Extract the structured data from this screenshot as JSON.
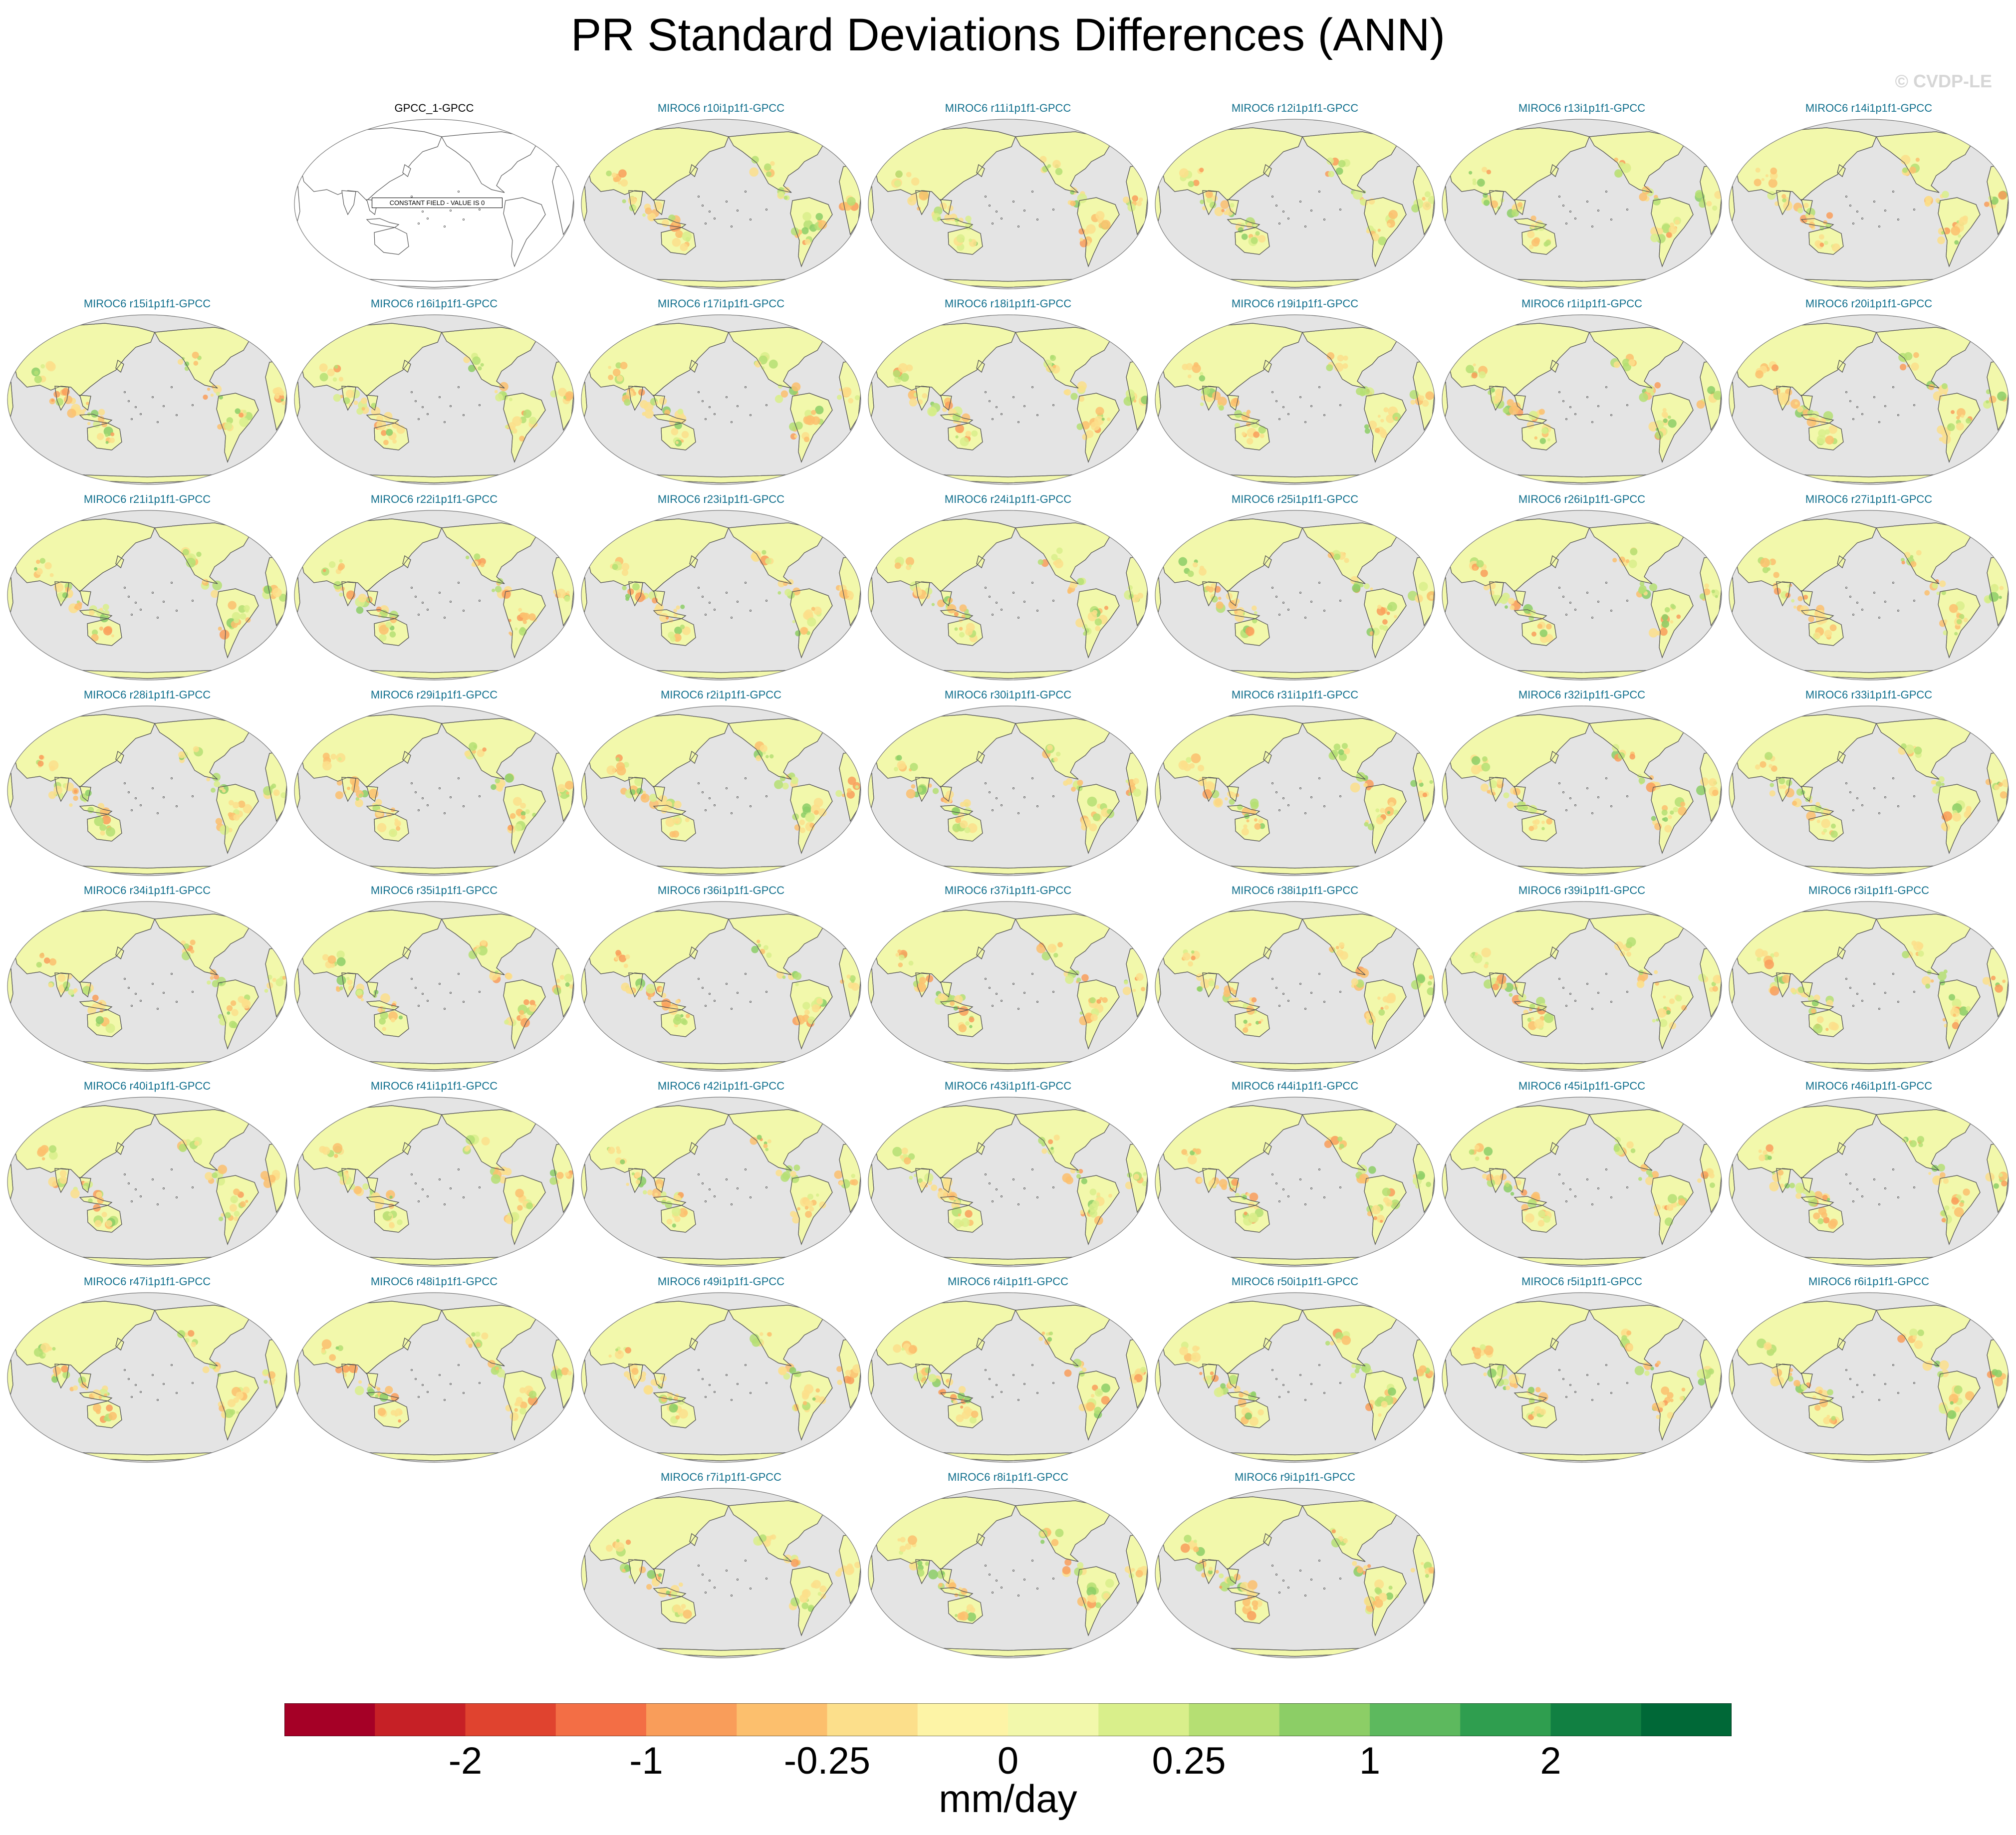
{
  "title": "PR Standard Deviations Differences (ANN)",
  "watermark": "© CVDP-LE",
  "constant_label": "CONSTANT FIELD - VALUE IS 0",
  "panels": [
    {
      "title": "GPCC_1-GPCC",
      "observation": true
    },
    {
      "title": "MIROC6 r10i1p1f1-GPCC"
    },
    {
      "title": "MIROC6 r11i1p1f1-GPCC"
    },
    {
      "title": "MIROC6 r12i1p1f1-GPCC"
    },
    {
      "title": "MIROC6 r13i1p1f1-GPCC"
    },
    {
      "title": "MIROC6 r14i1p1f1-GPCC"
    },
    {
      "title": "MIROC6 r15i1p1f1-GPCC"
    },
    {
      "title": "MIROC6 r16i1p1f1-GPCC"
    },
    {
      "title": "MIROC6 r17i1p1f1-GPCC"
    },
    {
      "title": "MIROC6 r18i1p1f1-GPCC"
    },
    {
      "title": "MIROC6 r19i1p1f1-GPCC"
    },
    {
      "title": "MIROC6 r1i1p1f1-GPCC"
    },
    {
      "title": "MIROC6 r20i1p1f1-GPCC"
    },
    {
      "title": "MIROC6 r21i1p1f1-GPCC"
    },
    {
      "title": "MIROC6 r22i1p1f1-GPCC"
    },
    {
      "title": "MIROC6 r23i1p1f1-GPCC"
    },
    {
      "title": "MIROC6 r24i1p1f1-GPCC"
    },
    {
      "title": "MIROC6 r25i1p1f1-GPCC"
    },
    {
      "title": "MIROC6 r26i1p1f1-GPCC"
    },
    {
      "title": "MIROC6 r27i1p1f1-GPCC"
    },
    {
      "title": "MIROC6 r28i1p1f1-GPCC"
    },
    {
      "title": "MIROC6 r29i1p1f1-GPCC"
    },
    {
      "title": "MIROC6 r2i1p1f1-GPCC"
    },
    {
      "title": "MIROC6 r30i1p1f1-GPCC"
    },
    {
      "title": "MIROC6 r31i1p1f1-GPCC"
    },
    {
      "title": "MIROC6 r32i1p1f1-GPCC"
    },
    {
      "title": "MIROC6 r33i1p1f1-GPCC"
    },
    {
      "title": "MIROC6 r34i1p1f1-GPCC"
    },
    {
      "title": "MIROC6 r35i1p1f1-GPCC"
    },
    {
      "title": "MIROC6 r36i1p1f1-GPCC"
    },
    {
      "title": "MIROC6 r37i1p1f1-GPCC"
    },
    {
      "title": "MIROC6 r38i1p1f1-GPCC"
    },
    {
      "title": "MIROC6 r39i1p1f1-GPCC"
    },
    {
      "title": "MIROC6 r3i1p1f1-GPCC"
    },
    {
      "title": "MIROC6 r40i1p1f1-GPCC"
    },
    {
      "title": "MIROC6 r41i1p1f1-GPCC"
    },
    {
      "title": "MIROC6 r42i1p1f1-GPCC"
    },
    {
      "title": "MIROC6 r43i1p1f1-GPCC"
    },
    {
      "title": "MIROC6 r44i1p1f1-GPCC"
    },
    {
      "title": "MIROC6 r45i1p1f1-GPCC"
    },
    {
      "title": "MIROC6 r46i1p1f1-GPCC"
    },
    {
      "title": "MIROC6 r47i1p1f1-GPCC"
    },
    {
      "title": "MIROC6 r48i1p1f1-GPCC"
    },
    {
      "title": "MIROC6 r49i1p1f1-GPCC"
    },
    {
      "title": "MIROC6 r4i1p1f1-GPCC"
    },
    {
      "title": "MIROC6 r50i1p1f1-GPCC"
    },
    {
      "title": "MIROC6 r5i1p1f1-GPCC"
    },
    {
      "title": "MIROC6 r6i1p1f1-GPCC"
    },
    {
      "title": "MIROC6 r7i1p1f1-GPCC"
    },
    {
      "title": "MIROC6 r8i1p1f1-GPCC"
    },
    {
      "title": "MIROC6 r9i1p1f1-GPCC"
    }
  ],
  "colorbar": {
    "colors": [
      "#a50026",
      "#c62026",
      "#e0432f",
      "#f36e45",
      "#f99d5a",
      "#fcbf6d",
      "#fcdf8b",
      "#fdf4a6",
      "#f2f8ab",
      "#d9ef8b",
      "#b5df73",
      "#8cce66",
      "#5db95e",
      "#2f9e4f",
      "#118042",
      "#006837"
    ],
    "labels": [
      {
        "text": "-2",
        "boundary": 2
      },
      {
        "text": "-1",
        "boundary": 4
      },
      {
        "text": "-0.25",
        "boundary": 6
      },
      {
        "text": "0",
        "boundary": 8
      },
      {
        "text": "0.25",
        "boundary": 10
      },
      {
        "text": "1",
        "boundary": 12
      },
      {
        "text": "2",
        "boundary": 14
      }
    ],
    "units": "mm/day"
  },
  "colors": {
    "ocean": "#e4e4e4",
    "land_base": "#f2f8ab",
    "coast": "#555555",
    "title": "#0f6e8c"
  }
}
